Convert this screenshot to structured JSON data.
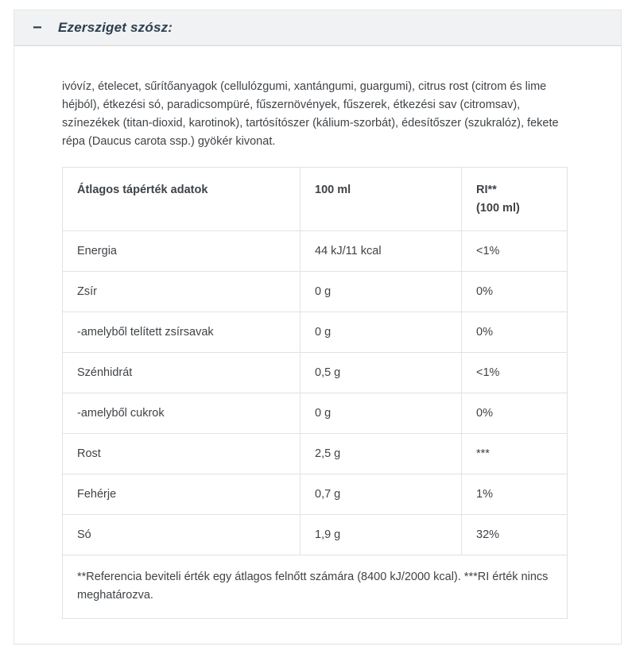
{
  "accordion": {
    "collapse_icon": "−",
    "title": "Ezersziget szósz:"
  },
  "ingredients_text": "ivóvíz, ételecet, sűrítőanyagok (cellulózgumi, xantángumi, guargumi), citrus rost (citrom és lime héjból), étkezési só, paradicsompüré, fűszernövények, fűszerek, étkezési sav (citromsav), színezékek (titan-dioxid, karotinok), tartósítószer (kálium-szorbát), édesítőszer (szukralóz), fekete répa (Daucus carota ssp.) gyökér kivonat.",
  "nutrition_table": {
    "header": {
      "col1": "Átlagos tápérték adatok",
      "col2": "100 ml",
      "col3_line1": "RI**",
      "col3_line2": "(100 ml)"
    },
    "rows": [
      {
        "label": "Energia",
        "value": "44 kJ/11 kcal",
        "ri": "<1%"
      },
      {
        "label": "Zsír",
        "value": "0 g",
        "ri": "0%"
      },
      {
        "label": "-amelyből telített zsírsavak",
        "value": "0 g",
        "ri": "0%"
      },
      {
        "label": "Szénhidrát",
        "value": "0,5 g",
        "ri": "<1%"
      },
      {
        "label": "-amelyből cukrok",
        "value": "0 g",
        "ri": "0%"
      },
      {
        "label": "Rost",
        "value": "2,5 g",
        "ri": "***"
      },
      {
        "label": "Fehérje",
        "value": "0,7 g",
        "ri": "1%"
      },
      {
        "label": "Só",
        "value": "1,9 g",
        "ri": "32%"
      }
    ],
    "footnote": "**Referencia beviteli érték egy átlagos felnőtt számára (8400 kJ/2000 kcal). ***RI érték nincs meghatározva."
  },
  "colors": {
    "header_bg": "#f1f2f3",
    "header_border": "#d3d6d8",
    "title_text": "#2c3e50",
    "body_text": "#3f4347",
    "table_border": "#e1e2e3",
    "card_border": "#e4e6e8"
  }
}
